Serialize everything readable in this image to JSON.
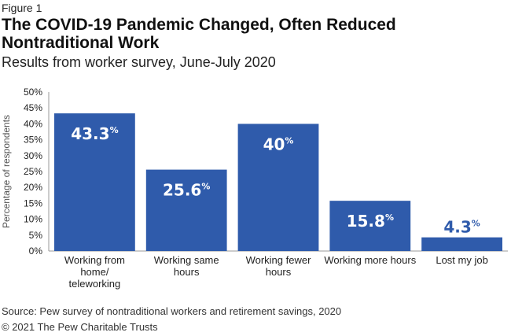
{
  "header": {
    "figure_label": "Figure 1",
    "title": "The COVID-19 Pandemic Changed, Often Reduced Nontraditional Work",
    "subtitle": "Results from worker survey, June-July 2020"
  },
  "chart_data": {
    "type": "bar",
    "categories": [
      [
        "Working from",
        "home/",
        "teleworking"
      ],
      [
        "Working same",
        "hours"
      ],
      [
        "Working fewer",
        "hours"
      ],
      [
        "Working more hours"
      ],
      [
        "Lost my job"
      ]
    ],
    "values": [
      43.3,
      25.6,
      40,
      15.8,
      4.3
    ],
    "value_labels": [
      "43.3",
      "25.6",
      "40",
      "15.8",
      "4.3"
    ],
    "value_suffix": "%",
    "ylabel": "Percentage of respondents",
    "ylim": [
      0,
      50
    ],
    "yticks": [
      0,
      5,
      10,
      15,
      20,
      25,
      30,
      35,
      40,
      45,
      50
    ],
    "ytick_labels": [
      "0%",
      "5%",
      "10%",
      "15%",
      "20%",
      "25%",
      "30%",
      "35%",
      "40%",
      "45%",
      "50%"
    ],
    "grid": false,
    "bar_color": "#2f5bab",
    "axis_color": "#999999"
  },
  "footer": {
    "source": "Source: Pew survey of nontraditional workers and retirement savings, 2020",
    "copyright": "© 2021 The Pew Charitable Trusts"
  }
}
